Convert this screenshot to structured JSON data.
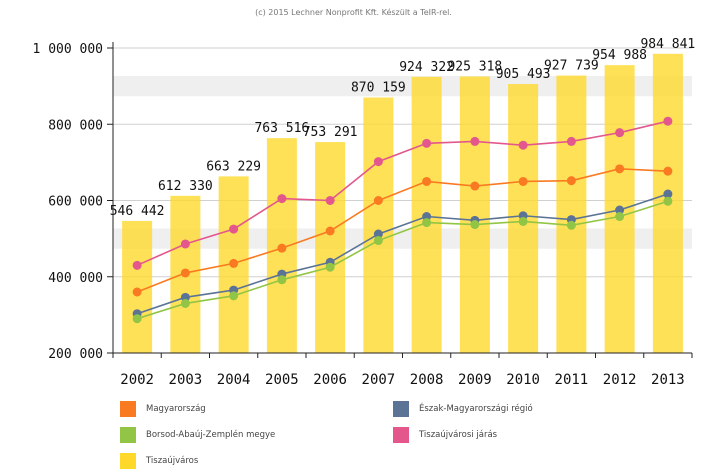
{
  "credit": "(c) 2015 Lechner Nonprofit Kft. Készült a TeIR-rel.",
  "chart_data": {
    "type": "bar+line",
    "categories": [
      "2002",
      "2003",
      "2004",
      "2005",
      "2006",
      "2007",
      "2008",
      "2009",
      "2010",
      "2011",
      "2012",
      "2013"
    ],
    "ylim": [
      200000,
      1000000
    ],
    "yticks": [
      200000,
      400000,
      600000,
      800000,
      1000000
    ],
    "ytick_labels": [
      "200 000",
      "400 000",
      "600 000",
      "800 000",
      "1 000 000"
    ],
    "bars": {
      "name": "Tiszaújváros",
      "color": "#ffd829",
      "values": [
        546442,
        612330,
        663229,
        763516,
        753291,
        870159,
        924322,
        925318,
        905493,
        927739,
        954988,
        984841
      ],
      "labels": [
        "546 442",
        "612 330",
        "663 229",
        "763 516",
        "753 291",
        "870 159",
        "924 322",
        "925 318",
        "905 493",
        "927 739",
        "954 988",
        "984 841"
      ]
    },
    "series": [
      {
        "name": "Tiszaújvárosi járás",
        "color": "#e3578c",
        "values": [
          430000,
          486000,
          525000,
          605000,
          600000,
          702000,
          750000,
          755000,
          745000,
          755000,
          778000,
          808000
        ]
      },
      {
        "name": "Magyarország",
        "color": "#f97a21",
        "values": [
          360000,
          410000,
          435000,
          475000,
          520000,
          600000,
          650000,
          638000,
          650000,
          652000,
          683000,
          677000
        ]
      },
      {
        "name": "Észak-Magyarországi régió",
        "color": "#5b7496",
        "values": [
          303000,
          346000,
          365000,
          407000,
          438000,
          512000,
          558000,
          548000,
          560000,
          550000,
          575000,
          617000
        ]
      },
      {
        "name": "Borsod-Abaúj-Zemplén megye",
        "color": "#92c545",
        "values": [
          290000,
          330000,
          350000,
          392000,
          425000,
          495000,
          542000,
          537000,
          545000,
          535000,
          558000,
          598000
        ]
      }
    ],
    "grid": true
  },
  "legend": [
    {
      "label": "Magyarország",
      "color": "#f97a21"
    },
    {
      "label": "Észak-Magyarországi régió",
      "color": "#5b7496"
    },
    {
      "label": "Borsod-Abaúj-Zemplén megye",
      "color": "#92c545"
    },
    {
      "label": "Tiszaújvárosi járás",
      "color": "#e3578c"
    },
    {
      "label": "Tiszaújváros",
      "color": "#ffd829"
    }
  ]
}
